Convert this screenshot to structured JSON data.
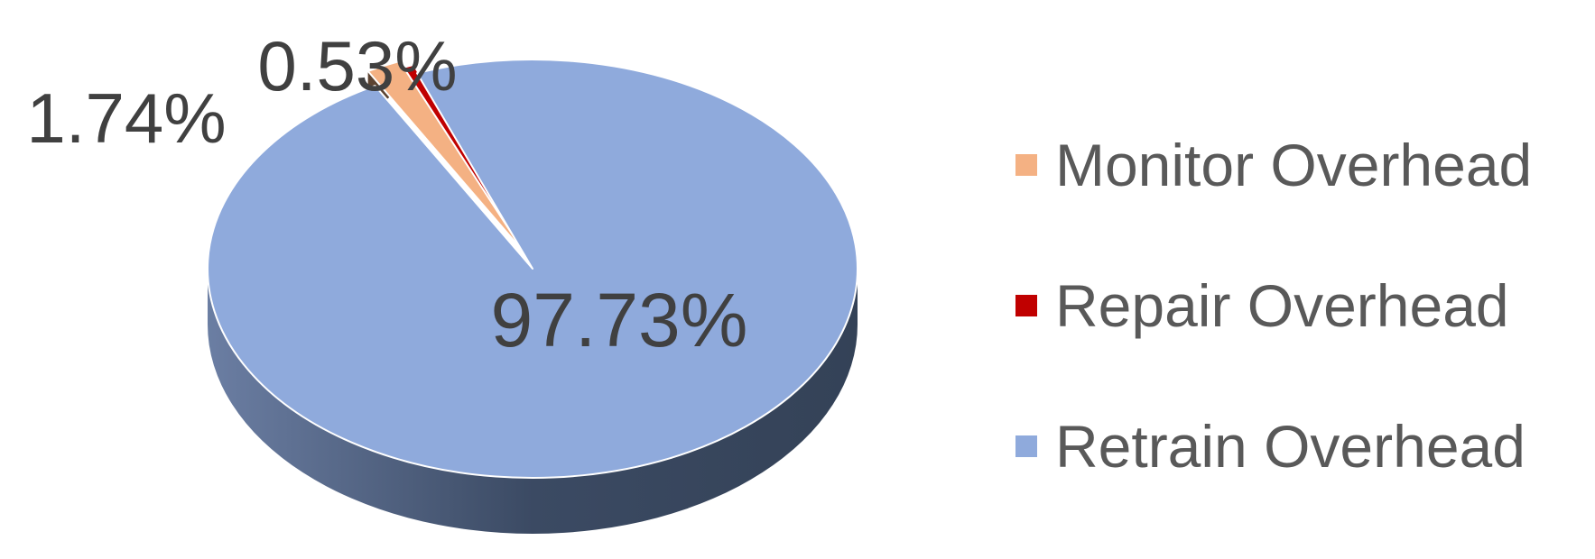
{
  "chart_data": {
    "type": "pie",
    "style": "3d",
    "title": "",
    "slices": [
      {
        "name": "Monitor Overhead",
        "value": 1.74,
        "label": "1.74%",
        "color": "#f4b183"
      },
      {
        "name": "Repair Overhead",
        "value": 0.53,
        "label": "0.53%",
        "color": "#c00000"
      },
      {
        "name": "Retrain Overhead",
        "value": 97.73,
        "label": "97.73%",
        "color": "#8faadc"
      }
    ],
    "legend": {
      "position": "right"
    }
  }
}
